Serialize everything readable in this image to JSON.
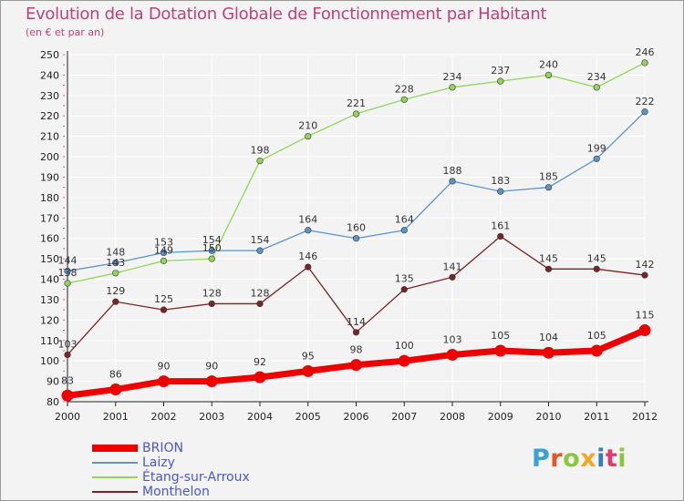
{
  "title": "Evolution de la Dotation Globale de Fonctionnement par Habitant",
  "subtitle": "(en € et par an)",
  "logo_text": "Proxiti",
  "colors": {
    "background": "#f3f3f3",
    "title": "#c0407a",
    "grid": "#ffffff",
    "axis": "#222222",
    "tick_marks": "#e85a7a",
    "legend_text": "#4a57d0"
  },
  "chart_data": {
    "type": "line",
    "title": "Evolution de la Dotation Globale de Fonctionnement par Habitant",
    "subtitle": "(en € et par an)",
    "xlabel": "",
    "ylabel": "",
    "x": [
      "2000",
      "2001",
      "2002",
      "2003",
      "2004",
      "2005",
      "2006",
      "2007",
      "2008",
      "2009",
      "2010",
      "2011",
      "2012"
    ],
    "ylim": [
      80,
      250
    ],
    "yticks": [
      80,
      90,
      100,
      110,
      120,
      130,
      140,
      150,
      160,
      170,
      180,
      190,
      200,
      210,
      220,
      230,
      240,
      250
    ],
    "grid": true,
    "legend_position": "bottom-left",
    "series": [
      {
        "name": "BRION",
        "color": "#ee0000",
        "values": [
          83,
          86,
          90,
          90,
          92,
          95,
          98,
          100,
          103,
          105,
          104,
          105,
          115
        ]
      },
      {
        "name": "Laizy",
        "color": "#5a95cc",
        "values": [
          144,
          148,
          153,
          154,
          154,
          164,
          160,
          164,
          188,
          183,
          185,
          199,
          222
        ]
      },
      {
        "name": "Étang-sur-Arroux",
        "color": "#8fd65a",
        "values": [
          138,
          143,
          149,
          150,
          198,
          210,
          221,
          228,
          234,
          237,
          240,
          234,
          246
        ]
      },
      {
        "name": "Monthelon",
        "color": "#7a2525",
        "values": [
          103,
          129,
          125,
          128,
          128,
          146,
          114,
          135,
          141,
          161,
          145,
          145,
          142
        ]
      }
    ]
  }
}
